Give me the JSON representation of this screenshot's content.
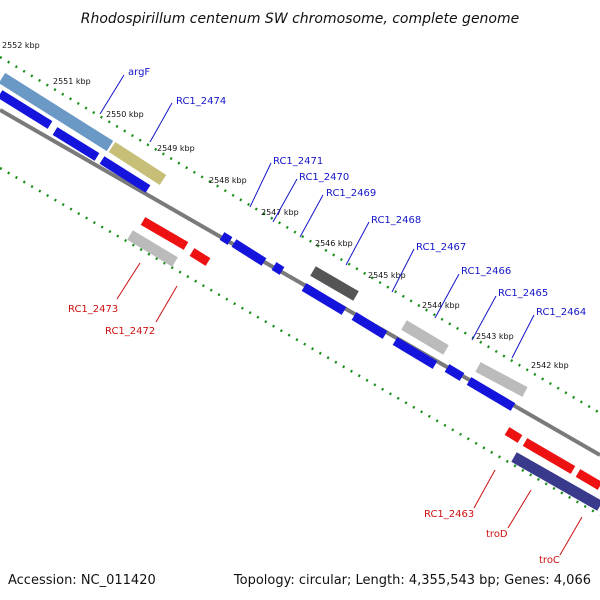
{
  "title": "Rhodospirillum centenum SW chromosome, complete genome",
  "footer": {
    "accession": "Accession: NC_011420",
    "topology": "Topology: circular; Length: 4,355,543 bp; Genes: 4,066"
  },
  "colors": {
    "background": "#ffffff",
    "backbone": "#888888",
    "tick_dots": "#1a8f1a",
    "forward_gene": "#1414dd",
    "reverse_gene": "#ee1111",
    "label_blue": "#1515c8",
    "label_red": "#cc1111",
    "pseudo_gray": "#bbbbbb",
    "dark_gray": "#555555",
    "argF_bar": "#5b8fbf",
    "rc2474_bar": "#c2b86a",
    "trp_bar": "#3a3a8c"
  },
  "scale_labels": [
    "2552 kbp",
    "2551 kbp",
    "2550 kbp",
    "2549 kbp",
    "2548 kbp",
    "2547 kbp",
    "2546 kbp",
    "2545 kbp",
    "2544 kbp",
    "2543 kbp",
    "2542 kbp"
  ],
  "gene_labels_forward": [
    "argF",
    "RC1_2474",
    "RC1_2471",
    "RC1_2470",
    "RC1_2469",
    "RC1_2468",
    "RC1_2467",
    "RC1_2466",
    "RC1_2465",
    "RC1_2464"
  ],
  "gene_labels_reverse": [
    "RC1_2473",
    "RC1_2472",
    "RC1_2463",
    "troD",
    "troC"
  ]
}
